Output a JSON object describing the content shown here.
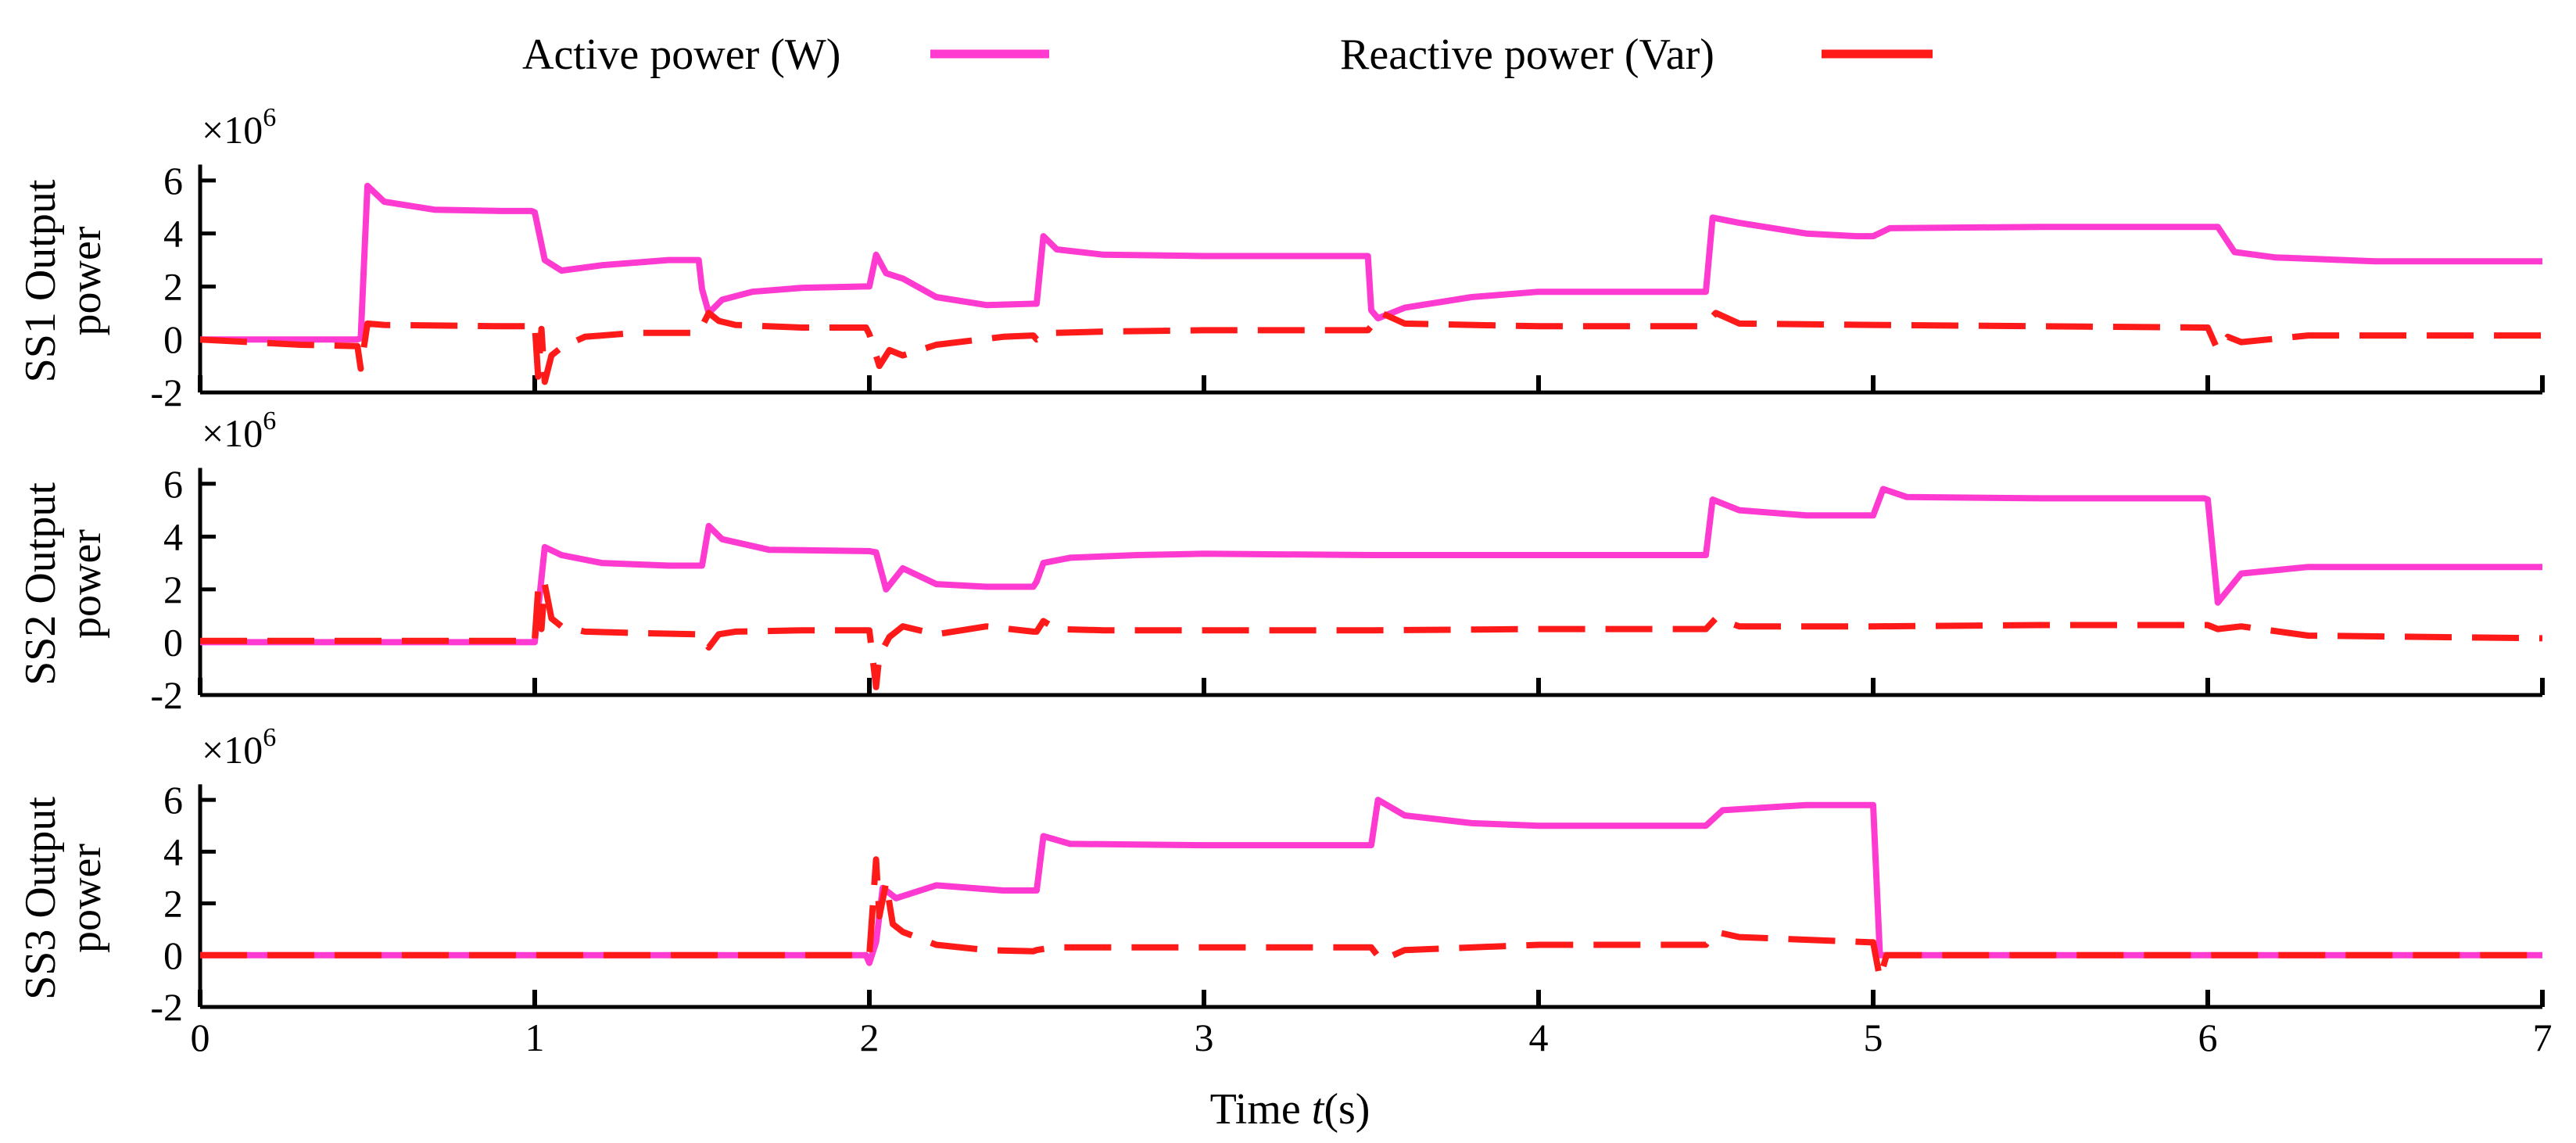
{
  "chart_data": {
    "type": "line",
    "xlabel": "Time t(s)",
    "xlabel_prefix": "Time ",
    "xlabel_var": "t",
    "xlabel_suffix": "(s)",
    "xlim": [
      0,
      7
    ],
    "ylim": [
      -2,
      7
    ],
    "x_ticks": [
      "0",
      "1",
      "2",
      "3",
      "4",
      "5",
      "6",
      "7"
    ],
    "y_ticks": [
      "6",
      "4",
      "2",
      "0",
      "-2"
    ],
    "y_multiplier": "×10",
    "y_multiplier_exp": "6",
    "legend": [
      {
        "name": "Active power (W)",
        "color": "#ff3ad0",
        "style": "solid"
      },
      {
        "name": "Reactive power (Var)",
        "color": "#ff1a1a",
        "style": "dashed"
      }
    ],
    "panels": [
      {
        "ylabel": [
          "SS1 Output",
          "power"
        ],
        "series": [
          {
            "name": "Active power (W)",
            "t": [
              0,
              0.47,
              0.48,
              0.5,
              0.55,
              0.7,
              0.9,
              0.99,
              1.0,
              1.03,
              1.08,
              1.2,
              1.4,
              1.49,
              1.5,
              1.52,
              1.56,
              1.65,
              1.8,
              1.99,
              2.0,
              2.02,
              2.05,
              2.1,
              2.2,
              2.35,
              2.49,
              2.5,
              2.52,
              2.56,
              2.7,
              3.0,
              3.3,
              3.49,
              3.5,
              3.52,
              3.6,
              3.8,
              4.0,
              4.49,
              4.5,
              4.52,
              4.6,
              4.8,
              4.95,
              5.0,
              5.05,
              5.5,
              5.99,
              6.0,
              6.03,
              6.08,
              6.2,
              6.5,
              7.0
            ],
            "v": [
              0,
              0,
              0.05,
              5.8,
              5.2,
              4.9,
              4.85,
              4.85,
              4.8,
              3.0,
              2.6,
              2.8,
              3.0,
              3.0,
              1.9,
              1.0,
              1.5,
              1.8,
              1.95,
              2.0,
              2.0,
              3.2,
              2.5,
              2.3,
              1.6,
              1.3,
              1.35,
              1.35,
              3.9,
              3.4,
              3.2,
              3.15,
              3.15,
              3.15,
              1.1,
              0.8,
              1.2,
              1.6,
              1.8,
              1.8,
              1.8,
              4.6,
              4.4,
              4.0,
              3.9,
              3.9,
              4.2,
              4.25,
              4.25,
              4.25,
              4.25,
              3.3,
              3.1,
              2.95,
              2.95,
              2.95
            ]
          },
          {
            "name": "Reactive power (Var)",
            "t": [
              0,
              0.3,
              0.47,
              0.48,
              0.5,
              0.55,
              0.9,
              0.99,
              1.0,
              1.01,
              1.02,
              1.03,
              1.05,
              1.08,
              1.15,
              1.3,
              1.49,
              1.5,
              1.52,
              1.55,
              1.6,
              1.8,
              1.99,
              2.0,
              2.03,
              2.06,
              2.1,
              2.2,
              2.4,
              2.49,
              2.5,
              2.55,
              2.7,
              3.0,
              3.49,
              3.5,
              3.53,
              3.6,
              4.0,
              4.49,
              4.5,
              4.53,
              4.6,
              5.0,
              5.5,
              5.99,
              6.0,
              6.03,
              6.06,
              6.1,
              6.3,
              7.0
            ],
            "v": [
              0,
              -0.2,
              -0.25,
              -1.1,
              0.6,
              0.55,
              0.5,
              0.5,
              0.6,
              -1.4,
              0.4,
              -1.6,
              -0.6,
              -0.3,
              0.1,
              0.25,
              0.25,
              0.5,
              1.0,
              0.7,
              0.55,
              0.45,
              0.45,
              0.2,
              -1.0,
              -0.4,
              -0.6,
              -0.2,
              0.1,
              0.15,
              0.0,
              0.25,
              0.3,
              0.35,
              0.35,
              0.5,
              1.0,
              0.6,
              0.5,
              0.5,
              0.6,
              1.0,
              0.6,
              0.55,
              0.5,
              0.45,
              0.45,
              -0.4,
              0.1,
              -0.1,
              0.15,
              0.15
            ]
          }
        ]
      },
      {
        "ylabel": [
          "SS2 Output",
          "power"
        ],
        "series": [
          {
            "name": "Active power (W)",
            "t": [
              0,
              0.99,
              1.0,
              1.03,
              1.08,
              1.2,
              1.4,
              1.49,
              1.5,
              1.52,
              1.56,
              1.7,
              1.99,
              2.0,
              2.02,
              2.05,
              2.1,
              2.2,
              2.35,
              2.49,
              2.5,
              2.52,
              2.6,
              2.8,
              3.0,
              3.5,
              4.0,
              4.49,
              4.5,
              4.52,
              4.6,
              4.8,
              4.99,
              5.0,
              5.03,
              5.1,
              5.5,
              5.99,
              6.0,
              6.03,
              6.1,
              6.3,
              7.0
            ],
            "v": [
              0,
              0,
              0,
              3.6,
              3.3,
              3.0,
              2.9,
              2.9,
              2.9,
              4.4,
              3.9,
              3.5,
              3.45,
              3.45,
              3.4,
              2.0,
              2.8,
              2.2,
              2.1,
              2.1,
              2.3,
              3.0,
              3.2,
              3.3,
              3.35,
              3.3,
              3.3,
              3.3,
              3.3,
              5.4,
              5.0,
              4.8,
              4.8,
              4.8,
              5.8,
              5.5,
              5.45,
              5.45,
              5.4,
              1.5,
              2.6,
              2.85,
              2.85
            ]
          },
          {
            "name": "Reactive power (Var)",
            "t": [
              0,
              0.99,
              1.0,
              1.01,
              1.02,
              1.03,
              1.05,
              1.08,
              1.15,
              1.3,
              1.49,
              1.5,
              1.52,
              1.55,
              1.6,
              1.8,
              1.99,
              2.0,
              2.02,
              2.03,
              2.06,
              2.1,
              2.2,
              2.35,
              2.49,
              2.5,
              2.52,
              2.56,
              2.7,
              3.0,
              3.5,
              4.0,
              4.49,
              4.5,
              4.53,
              4.6,
              5.0,
              5.5,
              5.99,
              6.0,
              6.03,
              6.1,
              6.3,
              7.0
            ],
            "v": [
              0.05,
              0.05,
              0.1,
              2.0,
              0.5,
              2.2,
              0.9,
              0.6,
              0.4,
              0.35,
              0.3,
              0.3,
              -0.2,
              0.3,
              0.4,
              0.45,
              0.45,
              0.45,
              -1.7,
              -0.5,
              0.2,
              0.6,
              0.3,
              0.6,
              0.4,
              0.4,
              0.8,
              0.5,
              0.45,
              0.45,
              0.45,
              0.5,
              0.5,
              0.5,
              0.9,
              0.6,
              0.6,
              0.65,
              0.65,
              0.65,
              0.5,
              0.6,
              0.25,
              0.15
            ]
          }
        ]
      },
      {
        "ylabel": [
          "SS3 Output",
          "power"
        ],
        "series": [
          {
            "name": "Active power (W)",
            "t": [
              0,
              1.99,
              2.0,
              2.02,
              2.04,
              2.08,
              2.2,
              2.4,
              2.49,
              2.5,
              2.52,
              2.6,
              3.0,
              3.49,
              3.5,
              3.52,
              3.6,
              3.8,
              4.0,
              4.49,
              4.5,
              4.55,
              4.8,
              4.99,
              5.0,
              5.02,
              7.0
            ],
            "v": [
              0,
              0,
              -0.3,
              0.5,
              2.6,
              2.2,
              2.7,
              2.5,
              2.5,
              2.5,
              4.6,
              4.3,
              4.25,
              4.25,
              4.25,
              6.0,
              5.4,
              5.1,
              5.0,
              5.0,
              5.0,
              5.6,
              5.8,
              5.8,
              5.8,
              0,
              0
            ]
          },
          {
            "name": "Reactive power (Var)",
            "t": [
              0,
              1.99,
              2.0,
              2.02,
              2.03,
              2.05,
              2.07,
              2.1,
              2.2,
              2.35,
              2.49,
              2.5,
              2.55,
              2.7,
              3.0,
              3.49,
              3.5,
              3.53,
              3.6,
              4.0,
              4.49,
              4.5,
              4.53,
              4.6,
              4.99,
              5.0,
              5.02,
              5.04,
              7.0
            ],
            "v": [
              0,
              0,
              0,
              3.7,
              1.5,
              2.8,
              1.2,
              0.9,
              0.4,
              0.2,
              0.15,
              0.2,
              0.3,
              0.3,
              0.3,
              0.3,
              0.3,
              -0.2,
              0.2,
              0.4,
              0.4,
              0.4,
              0.9,
              0.7,
              0.5,
              0.5,
              -0.9,
              0,
              0
            ]
          }
        ]
      }
    ]
  }
}
